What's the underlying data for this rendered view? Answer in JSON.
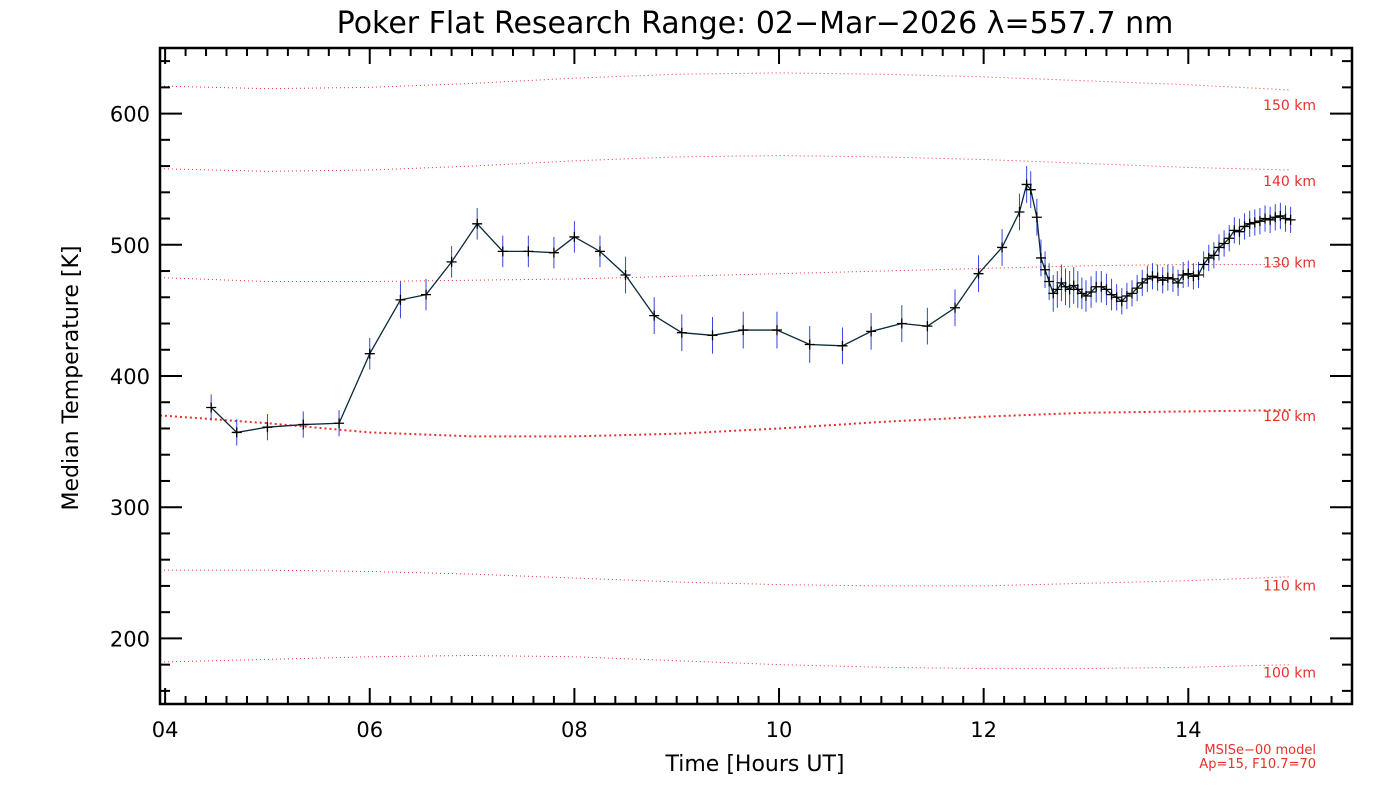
{
  "chart_data": {
    "type": "line",
    "title": "Poker Flat Research Range: 02−Mar−2026 λ=557.7 nm",
    "xlabel": "Time [Hours UT]",
    "ylabel": "Median Temperature [K]",
    "xlim": [
      3.95,
      15.6
    ],
    "ylim": [
      150,
      650
    ],
    "x_ticks": [
      4,
      6,
      8,
      10,
      12,
      14
    ],
    "x_tick_labels": [
      "04",
      "06",
      "08",
      "10",
      "12",
      "14"
    ],
    "y_ticks": [
      200,
      300,
      400,
      500,
      600
    ],
    "y_tick_labels": [
      "200",
      "300",
      "400",
      "500",
      "600"
    ],
    "colors": {
      "data": "#0a2a3a",
      "error_bar": "#3344dd",
      "model": "#e8302a",
      "axis": "#000000"
    },
    "series": [
      {
        "name": "Median Temperature",
        "x": [
          4.45,
          4.7,
          5.0,
          5.35,
          5.7,
          6.0,
          6.3,
          6.55,
          6.8,
          7.05,
          7.3,
          7.55,
          7.8,
          8.0,
          8.25,
          8.5,
          8.78,
          9.05,
          9.35,
          9.65,
          9.98,
          10.3,
          10.62,
          10.9,
          11.2,
          11.45,
          11.72,
          11.95,
          12.18,
          12.35,
          12.42,
          12.46,
          12.52,
          12.56,
          12.6,
          12.64,
          12.68,
          12.72,
          12.76,
          12.8,
          12.84,
          12.88,
          12.92,
          12.96,
          13.0,
          13.05,
          13.1,
          13.15,
          13.2,
          13.25,
          13.3,
          13.35,
          13.4,
          13.45,
          13.5,
          13.55,
          13.6,
          13.65,
          13.7,
          13.75,
          13.8,
          13.85,
          13.9,
          13.95,
          14.0,
          14.05,
          14.1,
          14.15,
          14.2,
          14.25,
          14.3,
          14.35,
          14.4,
          14.45,
          14.5,
          14.55,
          14.6,
          14.65,
          14.7,
          14.75,
          14.8,
          14.85,
          14.9,
          14.95,
          15.0
        ],
        "values": [
          376,
          357,
          361,
          363,
          364,
          417,
          458,
          462,
          487,
          516,
          495,
          495,
          494,
          506,
          495,
          477,
          446,
          433,
          431,
          435,
          435,
          424,
          423,
          434,
          440,
          438,
          452,
          478,
          498,
          525,
          546,
          542,
          521,
          490,
          481,
          472,
          463,
          466,
          471,
          468,
          466,
          469,
          466,
          463,
          461,
          464,
          468,
          468,
          466,
          462,
          460,
          457,
          461,
          463,
          467,
          471,
          474,
          476,
          475,
          473,
          475,
          474,
          471,
          477,
          478,
          476,
          477,
          485,
          490,
          492,
          498,
          501,
          505,
          511,
          510,
          514,
          516,
          517,
          518,
          520,
          519,
          521,
          522,
          520,
          519
        ],
        "errors": [
          10,
          10,
          10,
          10,
          10,
          12,
          14,
          12,
          12,
          12,
          12,
          12,
          12,
          12,
          12,
          14,
          14,
          14,
          14,
          14,
          14,
          14,
          14,
          14,
          14,
          14,
          14,
          14,
          14,
          14,
          14,
          14,
          14,
          14,
          14,
          14,
          14,
          14,
          14,
          14,
          14,
          14,
          14,
          12,
          12,
          12,
          12,
          12,
          12,
          12,
          10,
          10,
          10,
          10,
          10,
          10,
          10,
          10,
          10,
          10,
          10,
          10,
          10,
          10,
          10,
          10,
          10,
          10,
          10,
          10,
          10,
          10,
          10,
          10,
          10,
          10,
          10,
          10,
          10,
          10,
          10,
          10,
          10,
          10,
          10
        ]
      }
    ],
    "model_curves": [
      {
        "label": "150 km",
        "x": [
          3.95,
          5,
          6,
          7,
          8,
          9,
          10,
          11,
          12,
          13,
          14,
          15
        ],
        "values": [
          621,
          619,
          620,
          623,
          627,
          630,
          631,
          630,
          628,
          625,
          622,
          618
        ]
      },
      {
        "label": "140 km",
        "x": [
          3.95,
          5,
          6,
          7,
          8,
          9,
          10,
          11,
          12,
          13,
          14,
          15
        ],
        "values": [
          558,
          556,
          557,
          560,
          564,
          567,
          568,
          567,
          565,
          562,
          559,
          557
        ]
      },
      {
        "label": "130 km",
        "x": [
          3.95,
          5,
          6,
          7,
          8,
          9,
          10,
          11,
          12,
          13,
          14,
          15
        ],
        "values": [
          475,
          472,
          472,
          473,
          474,
          476,
          478,
          480,
          482,
          484,
          485,
          485
        ]
      },
      {
        "label": "120 km",
        "x": [
          3.95,
          5,
          6,
          7,
          8,
          9,
          10,
          11,
          12,
          13,
          14,
          15
        ],
        "values": [
          370,
          364,
          357,
          354,
          354,
          356,
          360,
          365,
          369,
          372,
          373,
          374
        ]
      },
      {
        "label": "110 km",
        "x": [
          3.95,
          5,
          6,
          7,
          8,
          9,
          10,
          11,
          12,
          13,
          14,
          15
        ],
        "values": [
          252,
          252,
          251,
          249,
          246,
          243,
          241,
          240,
          240,
          242,
          244,
          247
        ]
      },
      {
        "label": "100 km",
        "x": [
          3.95,
          5,
          6,
          7,
          8,
          9,
          10,
          11,
          12,
          13,
          14,
          15
        ],
        "values": [
          182,
          184,
          186,
          187,
          186,
          183,
          180,
          178,
          177,
          177,
          178,
          180
        ]
      }
    ],
    "annotations": [
      "MSISe−00 model",
      "Ap=15, F10.7=70"
    ]
  }
}
